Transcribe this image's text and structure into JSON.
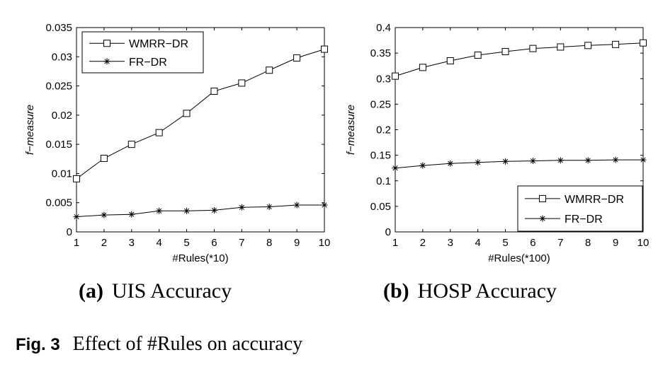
{
  "chart_data": [
    {
      "type": "line",
      "x": [
        1,
        2,
        3,
        4,
        5,
        6,
        7,
        8,
        9,
        10
      ],
      "xlabel": "#Rules(*10)",
      "ylabel": "f−measure",
      "xlim": [
        1,
        10
      ],
      "ylim": [
        0,
        0.035
      ],
      "xticks": [
        "1",
        "2",
        "3",
        "4",
        "5",
        "6",
        "7",
        "8",
        "9",
        "10"
      ],
      "yticks": [
        "0",
        "0.005",
        "0.01",
        "0.015",
        "0.02",
        "0.025",
        "0.03",
        "0.035"
      ],
      "legend": "top-left",
      "grid": false,
      "series": [
        {
          "name": "WMRR−DR",
          "marker": "square",
          "values": [
            0.0091,
            0.0126,
            0.015,
            0.017,
            0.0203,
            0.0241,
            0.0255,
            0.0277,
            0.0298,
            0.0313
          ]
        },
        {
          "name": "FR−DR",
          "marker": "star",
          "values": [
            0.0026,
            0.0029,
            0.003,
            0.0036,
            0.0036,
            0.0037,
            0.0042,
            0.0043,
            0.0046,
            0.0046
          ]
        }
      ]
    },
    {
      "type": "line",
      "x": [
        1,
        2,
        3,
        4,
        5,
        6,
        7,
        8,
        9,
        10
      ],
      "xlabel": "#Rules(*100)",
      "ylabel": "f−measure",
      "xlim": [
        1,
        10
      ],
      "ylim": [
        0,
        0.4
      ],
      "xticks": [
        "1",
        "2",
        "3",
        "4",
        "5",
        "6",
        "7",
        "8",
        "9",
        "10"
      ],
      "yticks": [
        "0",
        "0.05",
        "0.1",
        "0.15",
        "0.2",
        "0.25",
        "0.3",
        "0.35",
        "0.4"
      ],
      "legend": "bottom-right",
      "grid": false,
      "series": [
        {
          "name": "WMRR−DR",
          "marker": "square",
          "values": [
            0.305,
            0.322,
            0.335,
            0.346,
            0.353,
            0.359,
            0.362,
            0.365,
            0.367,
            0.37
          ]
        },
        {
          "name": "FR−DR",
          "marker": "star",
          "values": [
            0.125,
            0.13,
            0.134,
            0.136,
            0.138,
            0.139,
            0.14,
            0.14,
            0.141,
            0.141
          ]
        }
      ]
    }
  ],
  "subcaptions": [
    {
      "letter": "(a)",
      "text": "UIS Accuracy"
    },
    {
      "letter": "(b)",
      "text": "HOSP Accuracy"
    }
  ],
  "figure_caption": {
    "label": "Fig. 3",
    "text": "Effect of #Rules on accuracy"
  }
}
